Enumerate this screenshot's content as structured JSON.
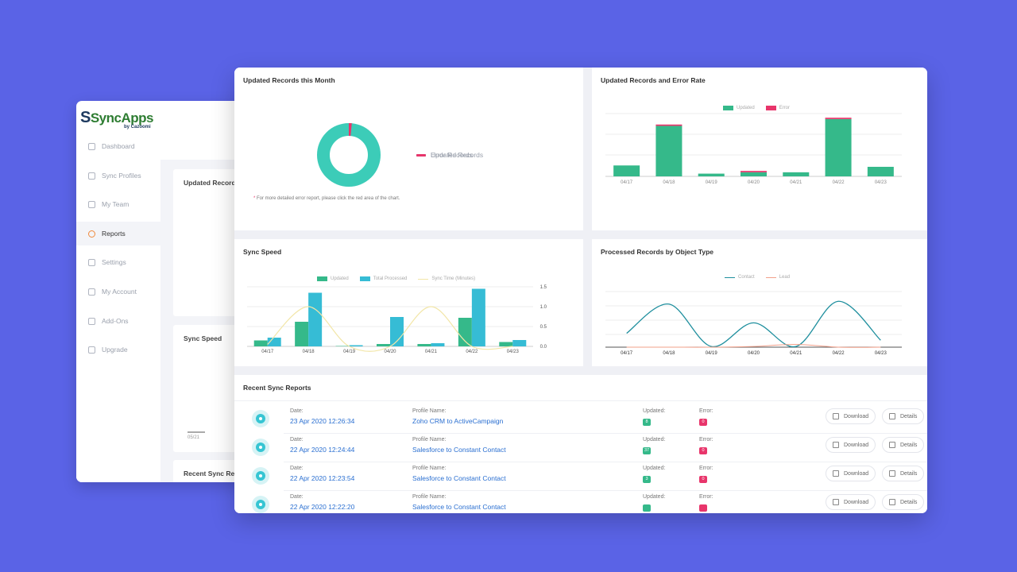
{
  "app": {
    "logo_text": "SyncApps",
    "logo_sub": "by Cazoomi"
  },
  "sidebar": {
    "items": [
      {
        "label": "Dashboard",
        "icon": "dashboard-icon"
      },
      {
        "label": "Sync Profiles",
        "icon": "sync-profiles-icon"
      },
      {
        "label": "My Team",
        "icon": "team-icon"
      },
      {
        "label": "Reports",
        "icon": "reports-icon",
        "active": true
      },
      {
        "label": "Settings",
        "icon": "settings-icon"
      },
      {
        "label": "My Account",
        "icon": "account-icon"
      },
      {
        "label": "Add-Ons",
        "icon": "add-ons-icon"
      },
      {
        "label": "Upgrade",
        "icon": "rocket-icon"
      }
    ]
  },
  "background_cards": {
    "updated_records": "Updated Records",
    "sync_speed": "Sync Speed",
    "recent_sync": "Recent Sync Re",
    "tick": "05/21"
  },
  "panels": {
    "updated_month_title": "Updated Records this Month",
    "updated_error_title": "Updated Records and Error Rate",
    "sync_speed_title": "Sync Speed",
    "processed_title": "Processed Records by Object Type",
    "recent_title": "Recent Sync Reports"
  },
  "donut": {
    "legend_updated": "Updated Records",
    "legend_error": "Error Records",
    "note_star": "*",
    "note": "For more detailed error report, please click the red area of the chart."
  },
  "colors": {
    "updated": "#35b98a",
    "error": "#e8356b",
    "total": "#36bcd5",
    "sync_time": "#f2e6a8",
    "contact": "#1f8f9e",
    "lead": "#f2a08a",
    "donut": "#3cccb8"
  },
  "chart_data": [
    {
      "type": "pie",
      "title": "Updated Records this Month",
      "categories": [
        "Updated Records",
        "Error Records"
      ],
      "values": [
        98.5,
        1.5
      ]
    },
    {
      "type": "bar",
      "title": "Updated Records and Error Rate",
      "categories": [
        "04/17",
        "04/18",
        "04/19",
        "04/20",
        "04/21",
        "04/22",
        "04/23"
      ],
      "series": [
        {
          "name": "Updated",
          "values": [
            8,
            37,
            2,
            3,
            3,
            42,
            7
          ]
        },
        {
          "name": "Error",
          "values": [
            0,
            1,
            0,
            1,
            0,
            1,
            0
          ]
        }
      ],
      "legend": "top-center",
      "grid": true
    },
    {
      "type": "bar",
      "title": "Sync Speed",
      "categories": [
        "04/17",
        "04/18",
        "04/19",
        "04/20",
        "04/21",
        "04/22",
        "04/23"
      ],
      "series": [
        {
          "name": "Updated",
          "values": [
            0.15,
            0.62,
            0.01,
            0.06,
            0.06,
            0.72,
            0.11
          ]
        },
        {
          "name": "Total Processed",
          "values": [
            0.22,
            1.35,
            0.03,
            0.74,
            0.08,
            1.45,
            0.16
          ]
        },
        {
          "name": "Sync Time (Minutes)",
          "type": "line",
          "values": [
            0.05,
            1.0,
            0.0,
            0.0,
            1.0,
            0.0,
            0.0
          ]
        }
      ],
      "yticks": [
        "1.5",
        "1.0",
        "0.5",
        "0.0"
      ],
      "ylim": [
        0,
        1.5
      ],
      "legend": "top-center",
      "grid": true
    },
    {
      "type": "line",
      "title": "Processed Records by Object Type",
      "categories": [
        "04/17",
        "04/18",
        "04/19",
        "04/20",
        "04/21",
        "04/22",
        "04/23"
      ],
      "series": [
        {
          "name": "Contact",
          "values": [
            2,
            6.2,
            0.1,
            3.5,
            0.1,
            6.6,
            1.0
          ]
        },
        {
          "name": "Lead",
          "values": [
            0,
            0,
            0,
            0.1,
            0.4,
            0,
            0
          ]
        }
      ],
      "ylim": [
        0,
        8
      ],
      "legend": "top-center",
      "grid": true
    }
  ],
  "reports": {
    "date_label": "Date:",
    "profile_label": "Profile Name:",
    "updated_label": "Updated:",
    "error_label": "Error:",
    "download_label": "Download",
    "details_label": "Details",
    "rows": [
      {
        "date": "23 Apr 2020 12:26:34",
        "profile": "Zoho CRM to ActiveCampaign",
        "updated": "8",
        "error": "0"
      },
      {
        "date": "22 Apr 2020 12:24:44",
        "profile": "Salesforce to Constant Contact",
        "updated": "37",
        "error": "0"
      },
      {
        "date": "22 Apr 2020 12:23:54",
        "profile": "Salesforce to Constant Contact",
        "updated": "3",
        "error": "0"
      },
      {
        "date": "22 Apr 2020 12:22:20",
        "profile": "Salesforce to Constant Contact",
        "updated": "",
        "error": ""
      }
    ]
  }
}
